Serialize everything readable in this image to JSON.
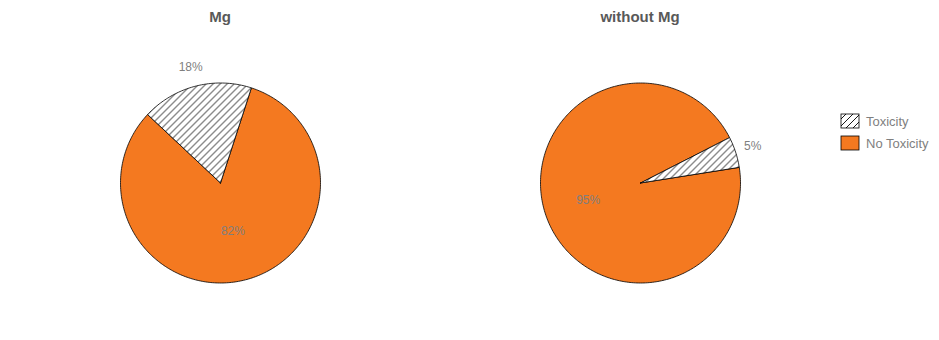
{
  "chart_data": [
    {
      "type": "pie",
      "title": "Mg",
      "categories": [
        "No Toxicity",
        "Toxicity"
      ],
      "values": [
        82,
        18
      ],
      "value_labels": [
        "82%",
        "18%"
      ],
      "colors": [
        "#F47920",
        "white"
      ],
      "data_labels": true
    },
    {
      "type": "pie",
      "title": "without Mg",
      "categories": [
        "No Toxicity",
        "Toxicity"
      ],
      "values": [
        95,
        5
      ],
      "value_labels": [
        "95%",
        "5%"
      ],
      "colors": [
        "#F47920",
        "white"
      ],
      "data_labels": true,
      "legend": "right"
    }
  ]
}
